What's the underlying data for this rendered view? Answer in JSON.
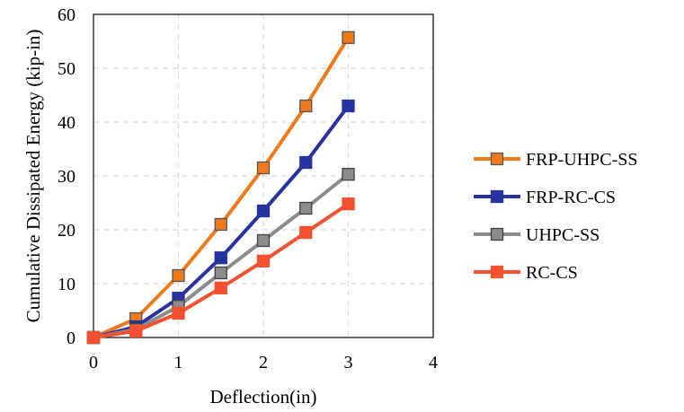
{
  "chart_data": {
    "type": "line",
    "title": "",
    "xlabel": "Deflection(in)",
    "ylabel": "Cumulative Dissipated Energy (kip-in)",
    "xlim": [
      0,
      4
    ],
    "ylim": [
      0,
      60
    ],
    "x_ticks": [
      0,
      1,
      2,
      3,
      4
    ],
    "y_ticks": [
      0,
      10,
      20,
      30,
      40,
      50,
      60
    ],
    "x_tick_labels": [
      "0",
      "1",
      "2",
      "3",
      "4"
    ],
    "y_tick_labels": [
      "0",
      "10",
      "20",
      "30",
      "40",
      "50",
      "60"
    ],
    "grid": "dashed, both axes",
    "legend_position": "right",
    "x": [
      0,
      0.5,
      1,
      1.5,
      2,
      2.5,
      3
    ],
    "series": [
      {
        "name": "FRP-UHPC-SS",
        "values": [
          0,
          3.5,
          11.5,
          21.0,
          31.5,
          43.0,
          55.7
        ],
        "color": "#F07A1A",
        "marker_fill": "#F07A1A",
        "marker_edge": "#555555"
      },
      {
        "name": "FRP-RC-CS",
        "values": [
          0,
          2.0,
          7.3,
          14.8,
          23.5,
          32.5,
          43.0
        ],
        "color": "#2633A0",
        "marker_fill": "#2633A0",
        "marker_edge": "#2633A0"
      },
      {
        "name": "UHPC-SS",
        "values": [
          0,
          1.5,
          5.8,
          12.0,
          18.0,
          24.0,
          30.3
        ],
        "color": "#8C8C8C",
        "marker_fill": "#8C8C8C",
        "marker_edge": "#404040"
      },
      {
        "name": "RC-CS",
        "values": [
          0,
          1.2,
          4.5,
          9.2,
          14.2,
          19.5,
          24.8
        ],
        "color": "#F5512E",
        "marker_fill": "#F5512E",
        "marker_edge": "#F5512E"
      }
    ]
  }
}
